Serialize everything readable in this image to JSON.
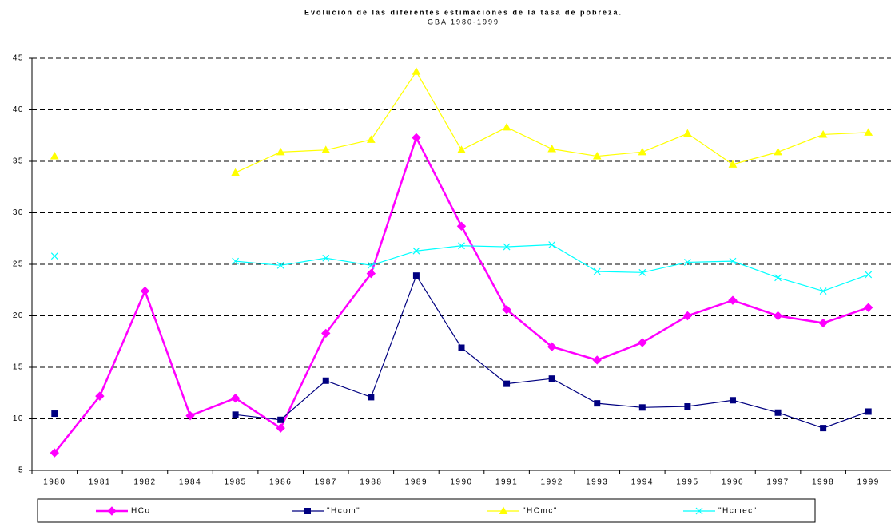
{
  "chart_data": {
    "type": "line",
    "title": "Evolución de las diferentes estimaciones de la tasa de pobreza.",
    "subtitle": "GBA 1980-1999",
    "categories": [
      "1980",
      "1981",
      "1982",
      "1984",
      "1985",
      "1986",
      "1987",
      "1988",
      "1989",
      "1990",
      "1991",
      "1992",
      "1993",
      "1994",
      "1995",
      "1996",
      "1997",
      "1998",
      "1999"
    ],
    "series": [
      {
        "name": "HCo",
        "color": "#ff00ff",
        "marker": "diamond",
        "values": [
          6.7,
          12.2,
          22.4,
          10.3,
          12.0,
          9.1,
          18.3,
          24.1,
          37.3,
          28.7,
          20.6,
          17.0,
          15.7,
          17.4,
          20.0,
          21.5,
          20.0,
          19.3,
          20.8
        ]
      },
      {
        "name": "\"Hcom\"",
        "color": "#000080",
        "marker": "square",
        "values": [
          10.5,
          null,
          null,
          null,
          10.4,
          9.9,
          13.7,
          12.1,
          23.9,
          16.9,
          13.4,
          13.9,
          11.5,
          11.1,
          11.2,
          11.8,
          10.6,
          9.1,
          10.7
        ]
      },
      {
        "name": "\"HCmc\"",
        "color": "#ffff00",
        "marker": "triangle",
        "values": [
          35.5,
          null,
          null,
          null,
          33.9,
          35.9,
          36.1,
          37.1,
          43.7,
          36.1,
          38.3,
          36.2,
          35.5,
          35.9,
          37.7,
          34.7,
          35.9,
          37.6,
          37.8
        ]
      },
      {
        "name": "\"Hcmec\"",
        "color": "#00ffff",
        "marker": "x",
        "values": [
          25.8,
          null,
          null,
          null,
          25.3,
          24.9,
          25.6,
          24.9,
          26.3,
          26.8,
          26.7,
          26.9,
          24.3,
          24.2,
          25.2,
          25.3,
          23.7,
          22.4,
          24.0
        ]
      }
    ],
    "ylim": [
      5,
      45
    ],
    "yticks": [
      5,
      10,
      15,
      20,
      25,
      30,
      35,
      40,
      45
    ],
    "grid": true
  }
}
